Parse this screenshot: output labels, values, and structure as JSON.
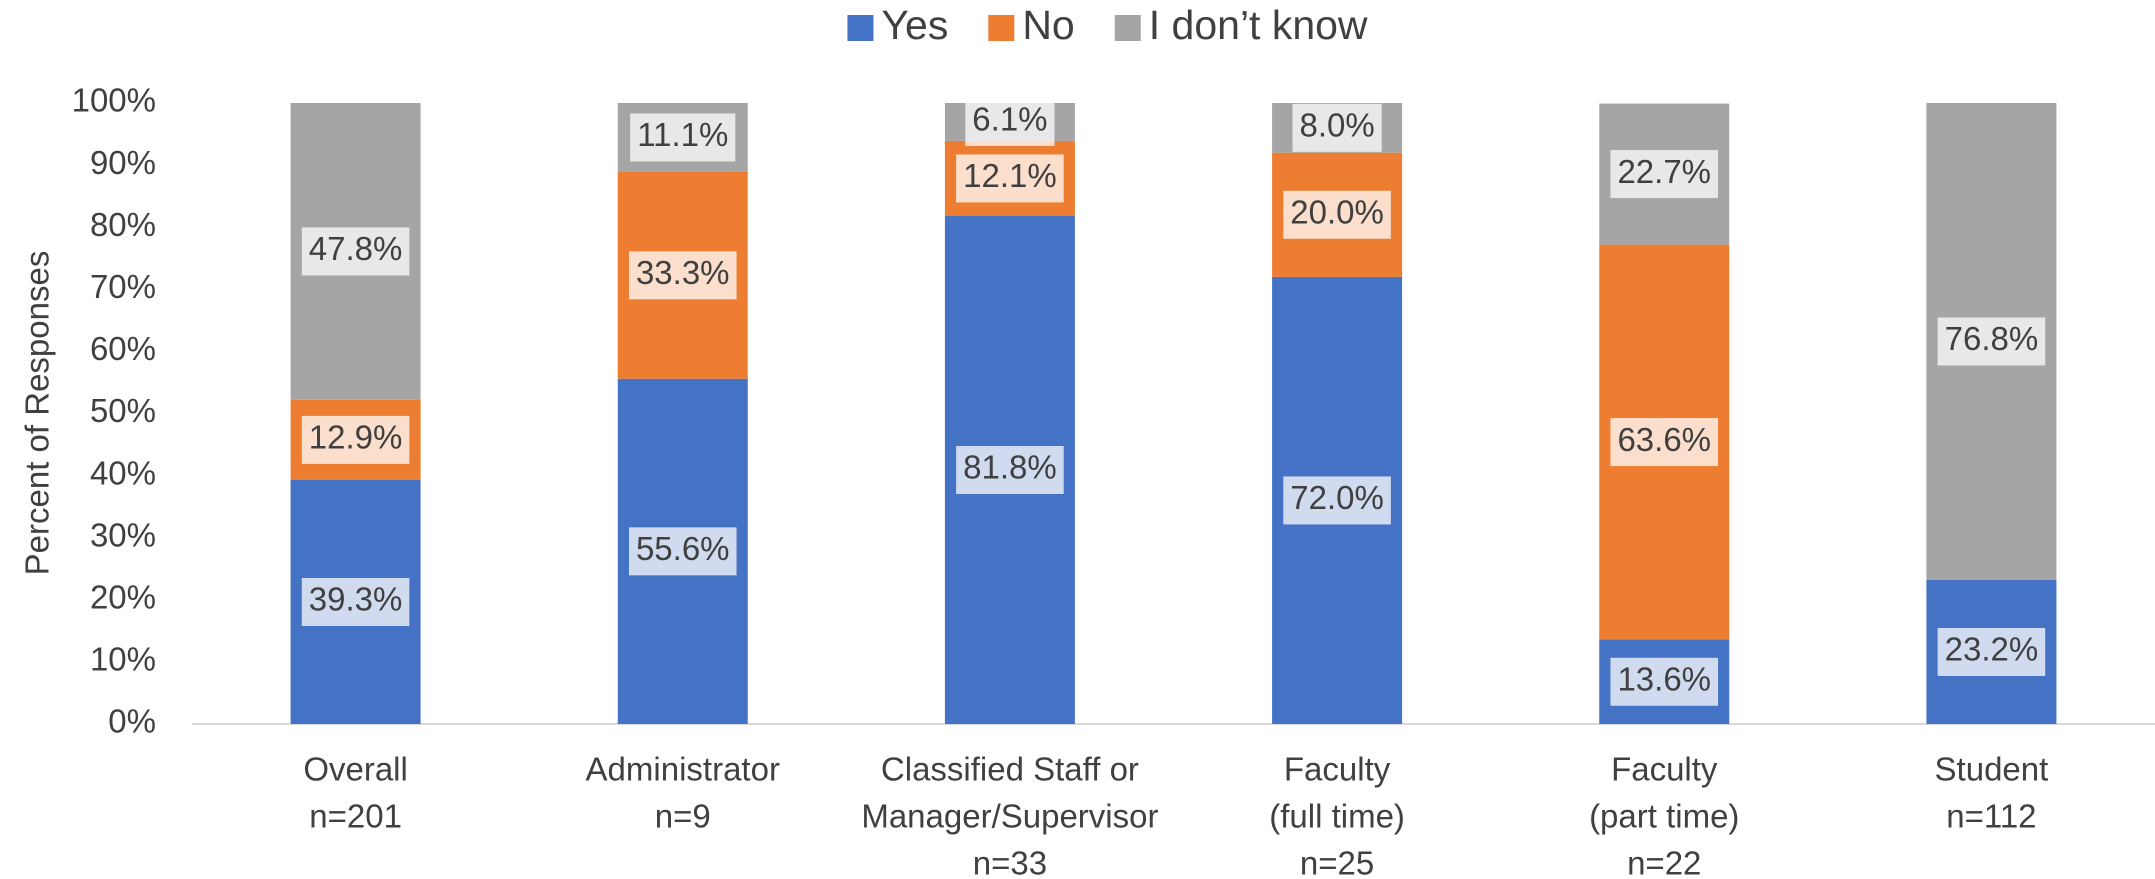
{
  "chart_data": {
    "type": "stacked_bar_100",
    "y_axis_label": "Percent of Responses",
    "categories": [
      [
        "Overall",
        "n=201"
      ],
      [
        "Administrator",
        "n=9"
      ],
      [
        "Classified Staff or",
        "Manager/Supervisor",
        "n=33"
      ],
      [
        "Faculty",
        "(full time)",
        "n=25"
      ],
      [
        "Faculty",
        "(part time)",
        "n=22"
      ],
      [
        "Student",
        "n=112"
      ]
    ],
    "series": [
      {
        "name": "Yes",
        "color": "#4472c4",
        "values": [
          39.3,
          55.6,
          81.8,
          72.0,
          13.6,
          23.2
        ],
        "value_labels": [
          "39.3%",
          "55.6%",
          "81.8%",
          "72.0%",
          "13.6%",
          "23.2%"
        ]
      },
      {
        "name": "No",
        "color": "#ed7d31",
        "values": [
          12.9,
          33.3,
          12.1,
          20.0,
          63.6,
          0
        ],
        "value_labels": [
          "12.9%",
          "33.3%",
          "12.1%",
          "20.0%",
          "63.6%",
          null
        ]
      },
      {
        "name": "I don’t know",
        "color": "#a5a5a5",
        "values": [
          47.8,
          11.1,
          6.1,
          8.0,
          22.7,
          76.8
        ],
        "value_labels": [
          "47.8%",
          "11.1%",
          "6.1%",
          "8.0%",
          "22.7%",
          "76.8%"
        ]
      }
    ],
    "ylim": [
      0,
      100
    ],
    "yticks": [
      {
        "value": 0,
        "label": "0%"
      },
      {
        "value": 10,
        "label": "10%"
      },
      {
        "value": 20,
        "label": "20%"
      },
      {
        "value": 30,
        "label": "30%"
      },
      {
        "value": 40,
        "label": "40%"
      },
      {
        "value": 50,
        "label": "50%"
      },
      {
        "value": 60,
        "label": "60%"
      },
      {
        "value": 70,
        "label": "70%"
      },
      {
        "value": 80,
        "label": "80%"
      },
      {
        "value": 90,
        "label": "90%"
      },
      {
        "value": 100,
        "label": "100%"
      }
    ],
    "legend": "top",
    "grid": false
  }
}
